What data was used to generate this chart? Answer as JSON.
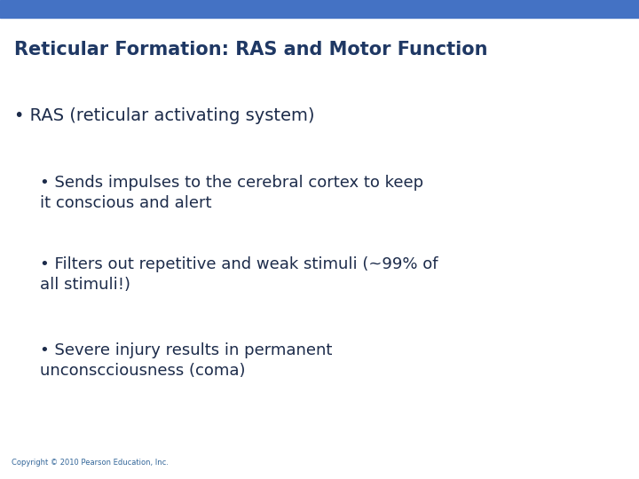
{
  "title": "Reticular Formation: RAS and Motor Function",
  "title_color": "#1F3864",
  "title_fontsize": 15,
  "background_color": "#FFFFFF",
  "body_text_color": "#1C2B4A",
  "header_bar_color": "#4472C4",
  "bullet1_text": "RAS (reticular activating system)",
  "bullet1_fontsize": 14,
  "subbullets": [
    "Sends impulses to the cerebral cortex to keep\nit conscious and alert",
    "Filters out repetitive and weak stimuli (~99% of\nall stimuli!)",
    "Severe injury results in permanent\nunconscciousness (coma)"
  ],
  "sub_fontsize": 13,
  "copyright": "Copyright © 2010 Pearson Education, Inc.",
  "copyright_fontsize": 6,
  "copyright_color": "#336699"
}
